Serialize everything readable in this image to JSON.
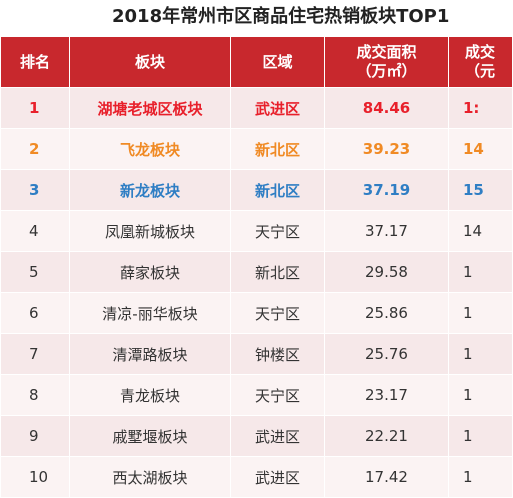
{
  "title": "2018年常州市区商品住宅热销板块TOP1",
  "colors": {
    "header_bg": "#c8282d",
    "header_text": "#ffffff",
    "rank1": "#e8202b",
    "rank2": "#f08a24",
    "rank3": "#2f7ec4",
    "text": "#333333"
  },
  "headers": {
    "rank": "排名",
    "block": "板块",
    "district": "区域",
    "area_line1": "成交面积",
    "area_line2": "（万㎡）",
    "col5_line1": "成交",
    "col5_line2": "（元"
  },
  "rows": [
    {
      "rank": "1",
      "block": "湖塘老城区板块",
      "district": "武进区",
      "area": "84.46",
      "col5": "1:"
    },
    {
      "rank": "2",
      "block": "飞龙板块",
      "district": "新北区",
      "area": "39.23",
      "col5": "14"
    },
    {
      "rank": "3",
      "block": "新龙板块",
      "district": "新北区",
      "area": "37.19",
      "col5": "15"
    },
    {
      "rank": "4",
      "block": "凤凰新城板块",
      "district": "天宁区",
      "area": "37.17",
      "col5": "14"
    },
    {
      "rank": "5",
      "block": "薛家板块",
      "district": "新北区",
      "area": "29.58",
      "col5": "1"
    },
    {
      "rank": "6",
      "block": "清凉-丽华板块",
      "district": "天宁区",
      "area": "25.86",
      "col5": "1"
    },
    {
      "rank": "7",
      "block": "清潭路板块",
      "district": "钟楼区",
      "area": "25.76",
      "col5": "1"
    },
    {
      "rank": "8",
      "block": "青龙板块",
      "district": "天宁区",
      "area": "23.17",
      "col5": "1"
    },
    {
      "rank": "9",
      "block": "戚墅堰板块",
      "district": "武进区",
      "area": "22.21",
      "col5": "1"
    },
    {
      "rank": "10",
      "block": "西太湖板块",
      "district": "武进区",
      "area": "17.42",
      "col5": "1"
    }
  ]
}
